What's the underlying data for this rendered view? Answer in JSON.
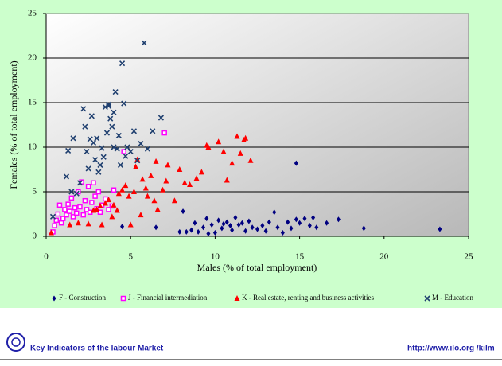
{
  "chart_data": {
    "type": "scatter",
    "x_label": "Males (% of total employment)",
    "y_label": "Females (% of total employment)",
    "xlim": [
      0,
      25
    ],
    "xticks": [
      0,
      5,
      10,
      15,
      20,
      25
    ],
    "ylim": [
      0,
      25
    ],
    "yticks": [
      0,
      5,
      10,
      15,
      20,
      25
    ],
    "grid": true,
    "series": [
      {
        "name": "F - Construction",
        "color": "#000080",
        "marker": "diamond",
        "x": [
          4.5,
          6.5,
          7.9,
          8.1,
          8.3,
          8.6,
          8.8,
          9.0,
          9.3,
          9.5,
          9.6,
          9.8,
          10.0,
          10.2,
          10.4,
          10.5,
          10.7,
          10.9,
          11.0,
          11.2,
          11.4,
          11.6,
          11.8,
          12.0,
          12.2,
          12.5,
          12.8,
          13.0,
          13.2,
          13.5,
          13.7,
          14.0,
          14.3,
          14.5,
          14.8,
          14.8,
          15.0,
          15.3,
          15.6,
          15.8,
          16.0,
          16.6,
          17.3,
          18.8,
          23.3
        ],
        "values": [
          1.1,
          1.0,
          0.5,
          2.8,
          0.5,
          0.7,
          1.5,
          0.5,
          1.0,
          2.0,
          0.3,
          1.3,
          0.4,
          1.8,
          0.9,
          1.4,
          1.6,
          1.2,
          0.7,
          2.1,
          1.3,
          1.5,
          0.6,
          1.7,
          1.0,
          0.8,
          1.2,
          0.6,
          1.6,
          2.7,
          1.0,
          0.4,
          1.6,
          0.9,
          1.9,
          8.2,
          1.5,
          2.0,
          1.2,
          2.1,
          1.0,
          1.5,
          1.9,
          0.9,
          0.8
        ]
      },
      {
        "name": "J - Financial intermediation",
        "color": "#ff00ff",
        "marker": "square",
        "x": [
          0.4,
          0.5,
          0.6,
          0.7,
          0.8,
          0.9,
          1.0,
          1.1,
          1.2,
          1.3,
          1.4,
          1.5,
          1.6,
          1.7,
          1.8,
          1.9,
          2.0,
          2.1,
          2.2,
          2.3,
          2.4,
          2.5,
          2.6,
          2.7,
          2.8,
          2.9,
          3.0,
          3.1,
          3.3,
          3.5,
          3.7,
          4.0,
          4.6,
          7.0,
          3.9,
          3.2
        ],
        "values": [
          0.5,
          1.2,
          1.8,
          2.5,
          3.5,
          1.5,
          2.0,
          3.0,
          2.4,
          3.6,
          2.8,
          4.3,
          2.2,
          3.2,
          2.6,
          5.0,
          3.3,
          6.1,
          2.4,
          4.0,
          3.0,
          5.6,
          2.7,
          3.8,
          6.0,
          4.5,
          3.1,
          5.0,
          3.5,
          4.2,
          3.0,
          5.2,
          9.5,
          11.6,
          3.4,
          2.7
        ]
      },
      {
        "name": "K - Real estate, renting and business activities",
        "color": "#ff0000",
        "marker": "triangle",
        "x": [
          0.3,
          1.4,
          1.9,
          2.5,
          2.8,
          3.0,
          3.2,
          3.3,
          3.5,
          3.7,
          3.9,
          4.0,
          4.2,
          4.3,
          4.5,
          4.7,
          4.9,
          5.0,
          5.2,
          5.3,
          5.4,
          5.6,
          5.7,
          5.9,
          6.0,
          6.2,
          6.4,
          6.5,
          6.6,
          6.9,
          7.1,
          7.2,
          7.6,
          7.9,
          8.2,
          8.5,
          8.9,
          9.2,
          9.5,
          9.6,
          10.2,
          10.5,
          10.7,
          11.0,
          11.3,
          11.5,
          11.7,
          11.8,
          12.1
        ],
        "values": [
          0.4,
          1.3,
          1.5,
          1.4,
          2.9,
          3.0,
          3.4,
          1.3,
          3.7,
          4.1,
          2.2,
          3.5,
          2.9,
          4.8,
          5.2,
          5.7,
          4.5,
          1.3,
          5.0,
          7.8,
          8.6,
          2.4,
          6.4,
          5.4,
          4.5,
          6.8,
          4.0,
          8.4,
          3.0,
          5.2,
          6.2,
          8.0,
          4.0,
          7.5,
          6.0,
          5.8,
          6.5,
          7.2,
          10.2,
          10.0,
          10.6,
          9.5,
          6.3,
          8.2,
          11.2,
          9.3,
          10.8,
          11.0,
          8.5
        ]
      },
      {
        "name": "M - Education",
        "color": "#1f3f6f",
        "marker": "x",
        "x": [
          0.4,
          1.2,
          1.3,
          1.5,
          1.6,
          1.8,
          2.0,
          2.2,
          2.3,
          2.4,
          2.5,
          2.6,
          2.7,
          2.8,
          2.9,
          3.0,
          3.1,
          3.3,
          3.4,
          3.5,
          3.6,
          3.7,
          3.8,
          3.9,
          4.0,
          4.1,
          4.2,
          4.3,
          4.4,
          4.5,
          4.6,
          4.7,
          4.8,
          5.0,
          5.2,
          5.4,
          5.6,
          5.8,
          6.0,
          6.3,
          6.8,
          3.2,
          4.0,
          3.7
        ],
        "values": [
          2.2,
          6.7,
          9.6,
          5.0,
          11.0,
          4.8,
          6.0,
          14.3,
          12.3,
          9.5,
          7.6,
          10.9,
          13.5,
          10.5,
          8.6,
          11.0,
          7.2,
          9.9,
          8.9,
          14.5,
          11.6,
          14.8,
          13.2,
          12.3,
          10.0,
          16.2,
          9.8,
          11.3,
          8.0,
          19.4,
          14.9,
          9.0,
          10.0,
          9.5,
          11.8,
          8.5,
          10.4,
          21.7,
          9.8,
          11.8,
          13.3,
          8.0,
          13.9,
          14.6
        ]
      }
    ]
  },
  "footer": {
    "left": "Key Indicators of the labour Market",
    "right": "http://www.ilo.org /kilm"
  }
}
